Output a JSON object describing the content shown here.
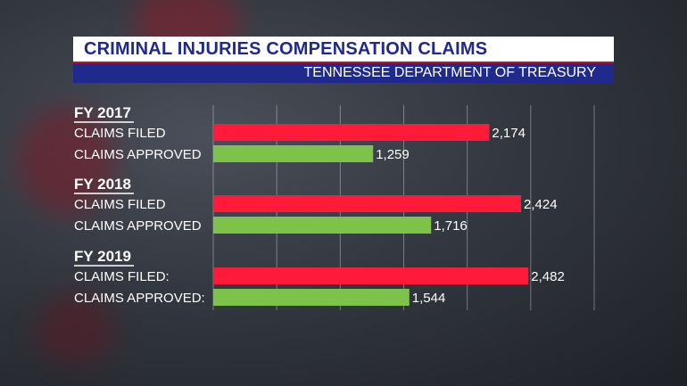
{
  "header": {
    "title": "CRIMINAL INJURIES COMPENSATION CLAIMS",
    "subtitle": "TENNESSEE DEPARTMENT OF TREASURY"
  },
  "colors": {
    "filed": "#ff1a3a",
    "approved": "#7dc24a",
    "title_text": "#1f2a8c",
    "subtitle_bg": "#1f2a8c",
    "accent": "#c8102e"
  },
  "chart_data": {
    "type": "bar",
    "orientation": "horizontal",
    "xlim": [
      0,
      3000
    ],
    "grid": true,
    "groups": [
      {
        "name": "FY 2017",
        "bars": [
          {
            "label": "CLAIMS FILED",
            "series": "filed",
            "value": 2174,
            "value_label": "2,174"
          },
          {
            "label": "CLAIMS APPROVED",
            "series": "approved",
            "value": 1259,
            "value_label": "1,259"
          }
        ]
      },
      {
        "name": "FY 2018",
        "bars": [
          {
            "label": "CLAIMS FILED",
            "series": "filed",
            "value": 2424,
            "value_label": "2,424"
          },
          {
            "label": "CLAIMS APPROVED",
            "series": "approved",
            "value": 1716,
            "value_label": "1,716"
          }
        ]
      },
      {
        "name": "FY 2019",
        "bars": [
          {
            "label": "CLAIMS FILED:",
            "series": "filed",
            "value": 2482,
            "value_label": "2,482"
          },
          {
            "label": "CLAIMS APPROVED:",
            "series": "approved",
            "value": 1544,
            "value_label": "1,544"
          }
        ]
      }
    ]
  }
}
